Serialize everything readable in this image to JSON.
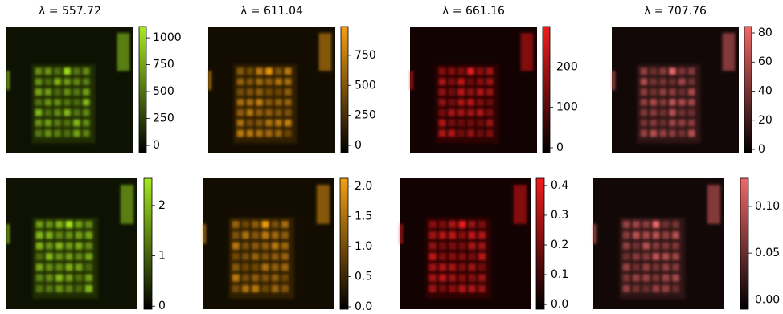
{
  "chart_data": [
    {
      "type": "heatmap",
      "title": "λ = 557.72",
      "colormap": "#a6ea1e",
      "ylim": [
        -67,
        1105
      ],
      "yticks": [
        0,
        250,
        500,
        750,
        1000
      ]
    },
    {
      "type": "heatmap",
      "title": "λ = 611.04",
      "colormap": "#f5a010",
      "ylim": [
        -60,
        990
      ],
      "yticks": [
        0,
        250,
        500,
        750
      ]
    },
    {
      "type": "heatmap",
      "title": "λ = 661.16",
      "colormap": "#f21c1c",
      "ylim": [
        -12,
        300
      ],
      "yticks": [
        0,
        100,
        200
      ]
    },
    {
      "type": "heatmap",
      "title": "λ = 707.76",
      "colormap": "#f06868",
      "ylim": [
        -2.2,
        84.4
      ],
      "yticks": [
        0,
        20,
        40,
        60,
        80
      ]
    },
    {
      "type": "heatmap",
      "colormap": "#a6ea1e",
      "ylim": [
        -0.06,
        2.54
      ],
      "yticks": [
        0,
        1,
        2
      ]
    },
    {
      "type": "heatmap",
      "colormap": "#f5a010",
      "ylim": [
        -0.04,
        2.13
      ],
      "yticks": [
        {
          "value": 0,
          "label": "0.0"
        },
        0.5,
        {
          "value": 1,
          "label": "1.0"
        },
        1.5,
        {
          "value": 2,
          "label": "2.0"
        }
      ]
    },
    {
      "type": "heatmap",
      "colormap": "#f21c1c",
      "ylim": [
        -0.016,
        0.424
      ],
      "yticks": [
        {
          "value": 0,
          "label": "0.0"
        },
        0.1,
        0.2,
        0.3,
        0.4
      ]
    },
    {
      "type": "heatmap",
      "colormap": "#f06868",
      "ylim": [
        -0.01,
        0.13
      ],
      "yticks": [
        {
          "value": 0,
          "label": "0.00"
        },
        {
          "value": 0.05,
          "label": "0.05"
        },
        {
          "value": 0.1,
          "label": "0.10"
        }
      ]
    }
  ]
}
